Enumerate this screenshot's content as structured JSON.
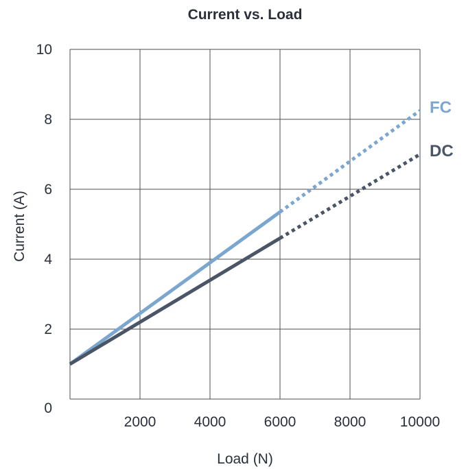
{
  "chart_data": {
    "type": "line",
    "title": "Current  vs. Load",
    "xlabel": "Load (N)",
    "ylabel": "Current (A)",
    "xlim": [
      0,
      10000
    ],
    "ylim": [
      0,
      10
    ],
    "xticks": [
      "2000",
      "4000",
      "6000",
      "8000",
      "10000"
    ],
    "yticks": [
      "0",
      "2",
      "4",
      "6",
      "8",
      "10"
    ],
    "grid": true,
    "legend": "inline labels at right end of lines",
    "series": [
      {
        "name": "FC",
        "color": "#7aa6d0",
        "solid": {
          "x": [
            0,
            6000
          ],
          "y": [
            1.0,
            5.35
          ]
        },
        "dotted": {
          "x": [
            6000,
            10000
          ],
          "y": [
            5.35,
            8.25
          ]
        }
      },
      {
        "name": "DC",
        "color": "#4a5566",
        "solid": {
          "x": [
            0,
            6000
          ],
          "y": [
            1.0,
            4.6
          ]
        },
        "dotted": {
          "x": [
            6000,
            10000
          ],
          "y": [
            4.6,
            7.0
          ]
        }
      }
    ]
  }
}
